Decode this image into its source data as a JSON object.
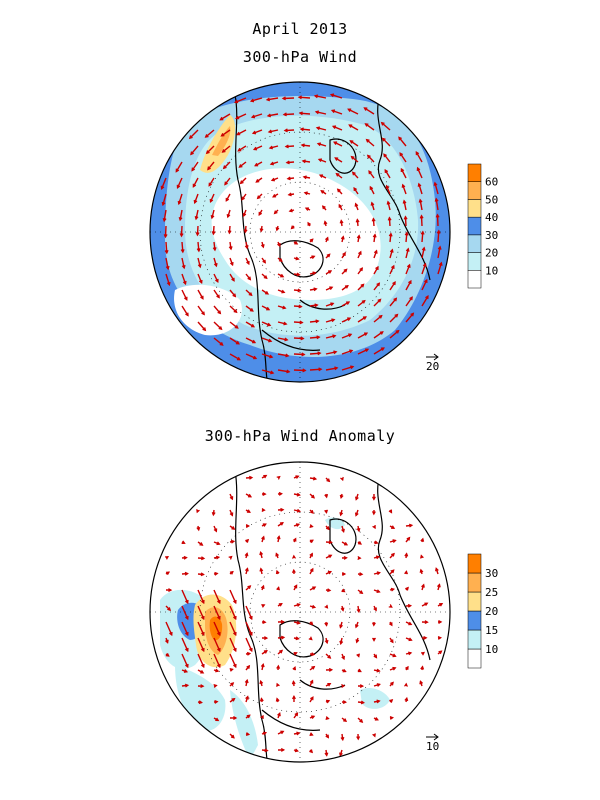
{
  "title": "April 2013",
  "panels": [
    {
      "title": "300-hPa Wind",
      "colorbar": {
        "labels": [
          "10",
          "20",
          "30",
          "40",
          "50",
          "60"
        ],
        "colors": [
          "#ffffff",
          "#c4f0f5",
          "#a6d8f0",
          "#4e8ee8",
          "#ffe08a",
          "#ffb050",
          "#ff7f00"
        ]
      },
      "reference_vector_label": "20"
    },
    {
      "title": "300-hPa Wind Anomaly",
      "colorbar": {
        "labels": [
          "10",
          "15",
          "20",
          "25",
          "30"
        ],
        "colors": [
          "#ffffff",
          "#c4f0f5",
          "#4e8ee8",
          "#ffe08a",
          "#ffb050",
          "#ff7f00"
        ]
      },
      "reference_vector_label": "10"
    }
  ],
  "vector_color": "#cc0000",
  "coast_color": "#000000"
}
